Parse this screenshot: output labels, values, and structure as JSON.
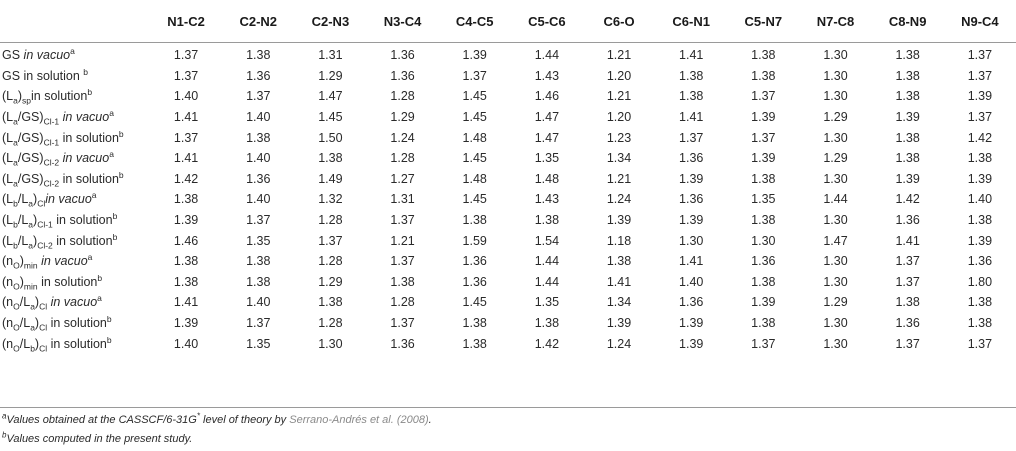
{
  "columns": [
    "",
    "N1-C2",
    "C2-N2",
    "C2-N3",
    "N3-C4",
    "C4-C5",
    "C5-C6",
    "C6-O",
    "C6-N1",
    "C5-N7",
    "N7-C8",
    "C8-N9",
    "N9-C4"
  ],
  "rows": [
    {
      "label_parts": [
        {
          "t": "GS "
        },
        {
          "t": "in vacuo",
          "style": "i"
        },
        {
          "t": "a",
          "style": "sup"
        }
      ],
      "values": [
        "1.37",
        "1.38",
        "1.31",
        "1.36",
        "1.39",
        "1.44",
        "1.21",
        "1.41",
        "1.38",
        "1.30",
        "1.38",
        "1.37"
      ]
    },
    {
      "label_parts": [
        {
          "t": "GS in solution "
        },
        {
          "t": "b",
          "style": "sup"
        }
      ],
      "values": [
        "1.37",
        "1.36",
        "1.29",
        "1.36",
        "1.37",
        "1.43",
        "1.20",
        "1.38",
        "1.38",
        "1.30",
        "1.38",
        "1.37"
      ]
    },
    {
      "label_parts": [
        {
          "t": "(L"
        },
        {
          "t": "a",
          "style": "sub"
        },
        {
          "t": ")"
        },
        {
          "t": "sp",
          "style": "sub"
        },
        {
          "t": "in solution"
        },
        {
          "t": "b",
          "style": "sup"
        }
      ],
      "values": [
        "1.40",
        "1.37",
        "1.47",
        "1.28",
        "1.45",
        "1.46",
        "1.21",
        "1.38",
        "1.37",
        "1.30",
        "1.38",
        "1.39"
      ]
    },
    {
      "label_parts": [
        {
          "t": "(L"
        },
        {
          "t": "a",
          "style": "sub"
        },
        {
          "t": "/GS)"
        },
        {
          "t": "Cl-1",
          "style": "sub"
        },
        {
          "t": " "
        },
        {
          "t": "in vacuo",
          "style": "i"
        },
        {
          "t": "a",
          "style": "sup"
        }
      ],
      "values": [
        "1.41",
        "1.40",
        "1.45",
        "1.29",
        "1.45",
        "1.47",
        "1.20",
        "1.41",
        "1.39",
        "1.29",
        "1.39",
        "1.37"
      ]
    },
    {
      "label_parts": [
        {
          "t": "(L"
        },
        {
          "t": "a",
          "style": "sub"
        },
        {
          "t": "/GS)"
        },
        {
          "t": "Cl-1",
          "style": "sub"
        },
        {
          "t": " in solution"
        },
        {
          "t": "b",
          "style": "sup"
        }
      ],
      "values": [
        "1.37",
        "1.38",
        "1.50",
        "1.24",
        "1.48",
        "1.47",
        "1.23",
        "1.37",
        "1.37",
        "1.30",
        "1.38",
        "1.42"
      ]
    },
    {
      "label_parts": [
        {
          "t": "(L"
        },
        {
          "t": "a",
          "style": "sub"
        },
        {
          "t": "/GS)"
        },
        {
          "t": "Cl-2",
          "style": "sub"
        },
        {
          "t": " "
        },
        {
          "t": "in vacuo",
          "style": "i"
        },
        {
          "t": "a",
          "style": "sup"
        }
      ],
      "values": [
        "1.41",
        "1.40",
        "1.38",
        "1.28",
        "1.45",
        "1.35",
        "1.34",
        "1.36",
        "1.39",
        "1.29",
        "1.38",
        "1.38"
      ]
    },
    {
      "label_parts": [
        {
          "t": "(L"
        },
        {
          "t": "a",
          "style": "sub"
        },
        {
          "t": "/GS)"
        },
        {
          "t": "Cl-2",
          "style": "sub"
        },
        {
          "t": " in solution"
        },
        {
          "t": "b",
          "style": "sup"
        }
      ],
      "values": [
        "1.42",
        "1.36",
        "1.49",
        "1.27",
        "1.48",
        "1.48",
        "1.21",
        "1.39",
        "1.38",
        "1.30",
        "1.39",
        "1.39"
      ]
    },
    {
      "label_parts": [
        {
          "t": "(L"
        },
        {
          "t": "b",
          "style": "sub"
        },
        {
          "t": "/L"
        },
        {
          "t": "a",
          "style": "sub"
        },
        {
          "t": ")"
        },
        {
          "t": "Cl",
          "style": "sub"
        },
        {
          "t": "in vacuo",
          "style": "i"
        },
        {
          "t": "a",
          "style": "sup"
        }
      ],
      "values": [
        "1.38",
        "1.40",
        "1.32",
        "1.31",
        "1.45",
        "1.43",
        "1.24",
        "1.36",
        "1.35",
        "1.44",
        "1.42",
        "1.40"
      ]
    },
    {
      "label_parts": [
        {
          "t": "(L"
        },
        {
          "t": "b",
          "style": "sub"
        },
        {
          "t": "/L"
        },
        {
          "t": "a",
          "style": "sub"
        },
        {
          "t": ")"
        },
        {
          "t": "Cl-1",
          "style": "sub"
        },
        {
          "t": " in solution"
        },
        {
          "t": "b",
          "style": "sup"
        }
      ],
      "values": [
        "1.39",
        "1.37",
        "1.28",
        "1.37",
        "1.38",
        "1.38",
        "1.39",
        "1.39",
        "1.38",
        "1.30",
        "1.36",
        "1.38"
      ]
    },
    {
      "label_parts": [
        {
          "t": "(L"
        },
        {
          "t": "b",
          "style": "sub"
        },
        {
          "t": "/L"
        },
        {
          "t": "a",
          "style": "sub"
        },
        {
          "t": ")"
        },
        {
          "t": "Cl-2",
          "style": "sub"
        },
        {
          "t": " in solution"
        },
        {
          "t": "b",
          "style": "sup"
        }
      ],
      "values": [
        "1.46",
        "1.35",
        "1.37",
        "1.21",
        "1.59",
        "1.54",
        "1.18",
        "1.30",
        "1.30",
        "1.47",
        "1.41",
        "1.39"
      ]
    },
    {
      "label_parts": [
        {
          "t": "(n"
        },
        {
          "t": "O",
          "style": "sub"
        },
        {
          "t": ")"
        },
        {
          "t": "min",
          "style": "sub"
        },
        {
          "t": " "
        },
        {
          "t": "in vacuo",
          "style": "i"
        },
        {
          "t": "a",
          "style": "sup"
        }
      ],
      "values": [
        "1.38",
        "1.38",
        "1.28",
        "1.37",
        "1.36",
        "1.44",
        "1.38",
        "1.41",
        "1.36",
        "1.30",
        "1.37",
        "1.36"
      ]
    },
    {
      "label_parts": [
        {
          "t": "(n"
        },
        {
          "t": "O",
          "style": "sub"
        },
        {
          "t": ")"
        },
        {
          "t": "min",
          "style": "sub"
        },
        {
          "t": " in solution"
        },
        {
          "t": "b",
          "style": "sup"
        }
      ],
      "values": [
        "1.38",
        "1.38",
        "1.29",
        "1.38",
        "1.36",
        "1.44",
        "1.41",
        "1.40",
        "1.38",
        "1.30",
        "1.37",
        "1.80"
      ]
    },
    {
      "label_parts": [
        {
          "t": "(n"
        },
        {
          "t": "O",
          "style": "sub"
        },
        {
          "t": "/L"
        },
        {
          "t": "a",
          "style": "sub"
        },
        {
          "t": ")"
        },
        {
          "t": "Cl",
          "style": "sub"
        },
        {
          "t": " "
        },
        {
          "t": "in vacuo",
          "style": "i"
        },
        {
          "t": "a",
          "style": "sup"
        }
      ],
      "values": [
        "1.41",
        "1.40",
        "1.38",
        "1.28",
        "1.45",
        "1.35",
        "1.34",
        "1.36",
        "1.39",
        "1.29",
        "1.38",
        "1.38"
      ]
    },
    {
      "label_parts": [
        {
          "t": "(n"
        },
        {
          "t": "O",
          "style": "sub"
        },
        {
          "t": "/L"
        },
        {
          "t": "a",
          "style": "sub"
        },
        {
          "t": ")"
        },
        {
          "t": "Cl",
          "style": "sub"
        },
        {
          "t": " in solution"
        },
        {
          "t": "b",
          "style": "sup"
        }
      ],
      "values": [
        "1.39",
        "1.37",
        "1.28",
        "1.37",
        "1.38",
        "1.38",
        "1.39",
        "1.39",
        "1.38",
        "1.30",
        "1.36",
        "1.38"
      ]
    },
    {
      "label_parts": [
        {
          "t": "(n"
        },
        {
          "t": "O",
          "style": "sub"
        },
        {
          "t": "/L"
        },
        {
          "t": "b",
          "style": "sub"
        },
        {
          "t": ")"
        },
        {
          "t": "Cl",
          "style": "sub"
        },
        {
          "t": " in solution"
        },
        {
          "t": "b",
          "style": "sup"
        }
      ],
      "values": [
        "1.40",
        "1.35",
        "1.30",
        "1.36",
        "1.38",
        "1.42",
        "1.24",
        "1.39",
        "1.37",
        "1.30",
        "1.37",
        "1.37"
      ]
    }
  ],
  "footnotes": {
    "a_marker": "a",
    "a_text": "Values obtained at the CASSCF/6-31G",
    "a_star": "*",
    "a_text2": " level of theory by ",
    "a_cite": "Serrano-Andrés et al. (2008)",
    "a_end": ".",
    "b_marker": "b",
    "b_text": "Values computed in the present study."
  }
}
